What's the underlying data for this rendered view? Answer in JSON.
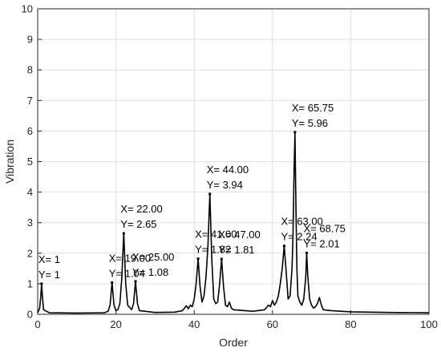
{
  "chart_data": {
    "type": "line",
    "title": "",
    "xlabel": "Order",
    "ylabel": "Vibration",
    "xlim": [
      0,
      100
    ],
    "ylim": [
      0,
      10
    ],
    "xticks": [
      0,
      20,
      40,
      60,
      80,
      100
    ],
    "yticks": [
      0,
      1,
      2,
      3,
      4,
      5,
      6,
      7,
      8,
      9,
      10
    ],
    "grid": true,
    "line_color": "#000000",
    "series": [
      {
        "x": [
          0,
          0.5,
          0.8,
          1,
          1.2,
          1.5,
          3,
          10,
          17,
          18,
          18.5,
          19,
          19.5,
          20,
          20.5,
          21,
          21.5,
          22,
          22.5,
          23,
          24,
          24.5,
          25,
          25.5,
          26,
          30,
          35,
          37,
          37.5,
          38,
          38.5,
          39,
          39.5,
          40,
          40.5,
          41,
          41.5,
          42,
          42.5,
          43,
          43.5,
          44,
          44.5,
          45,
          45.5,
          46,
          46.5,
          47,
          47.5,
          48,
          48.5,
          49,
          49.5,
          50,
          55,
          58,
          59,
          59.5,
          60,
          60.5,
          61,
          61.5,
          62,
          62.5,
          63,
          63.5,
          64,
          64.5,
          65,
          65.25,
          65.5,
          65.75,
          66,
          66.25,
          66.5,
          67,
          67.5,
          68,
          68.5,
          68.75,
          69,
          69.5,
          70,
          70.5,
          71,
          71.5,
          72,
          72.5,
          73,
          75,
          80,
          90,
          100
        ],
        "y": [
          0.05,
          0.2,
          0.6,
          1.0,
          0.6,
          0.15,
          0.05,
          0.04,
          0.05,
          0.1,
          0.3,
          1.04,
          0.3,
          0.12,
          0.15,
          0.35,
          1.2,
          2.65,
          1.0,
          0.3,
          0.15,
          0.35,
          1.08,
          0.35,
          0.12,
          0.06,
          0.07,
          0.12,
          0.2,
          0.28,
          0.18,
          0.3,
          0.25,
          0.5,
          1.0,
          1.82,
          0.9,
          0.4,
          0.6,
          1.2,
          2.2,
          3.94,
          1.8,
          0.5,
          0.35,
          0.4,
          1.0,
          1.81,
          0.9,
          0.3,
          0.25,
          0.4,
          0.2,
          0.15,
          0.1,
          0.15,
          0.3,
          0.25,
          0.45,
          0.3,
          0.4,
          0.6,
          1.0,
          1.5,
          2.24,
          1.4,
          0.5,
          0.6,
          1.5,
          2.6,
          4.5,
          5.96,
          3.5,
          1.5,
          0.6,
          0.4,
          0.3,
          0.5,
          1.2,
          2.01,
          1.3,
          0.5,
          0.3,
          0.2,
          0.25,
          0.35,
          0.55,
          0.3,
          0.15,
          0.12,
          0.08,
          0.06,
          0.05
        ]
      }
    ],
    "annotations": [
      {
        "x": 1,
        "y": 1,
        "line1": "X= 1",
        "line2": "Y= 1"
      },
      {
        "x": 19,
        "y": 1.04,
        "line1": "X= 19.00",
        "line2": "Y= 1.04"
      },
      {
        "x": 22,
        "y": 2.65,
        "line1": "X= 22.00",
        "line2": "Y= 2.65"
      },
      {
        "x": 25,
        "y": 1.08,
        "line1": "X= 25.00",
        "line2": "Y= 1.08"
      },
      {
        "x": 41,
        "y": 1.82,
        "line1": "X= 41.00",
        "line2": "Y= 1.82"
      },
      {
        "x": 44,
        "y": 3.94,
        "line1": "X= 44.00",
        "line2": "Y= 3.94"
      },
      {
        "x": 47,
        "y": 1.81,
        "line1": "X= 47.00",
        "line2": "Y= 1.81"
      },
      {
        "x": 63,
        "y": 2.24,
        "line1": "X= 63.00",
        "line2": "Y= 2.24"
      },
      {
        "x": 65.75,
        "y": 5.96,
        "line1": "X= 65.75",
        "line2": "Y= 5.96"
      },
      {
        "x": 68.75,
        "y": 2.01,
        "line1": "X= 68.75",
        "line2": "Y= 2.01"
      }
    ]
  }
}
